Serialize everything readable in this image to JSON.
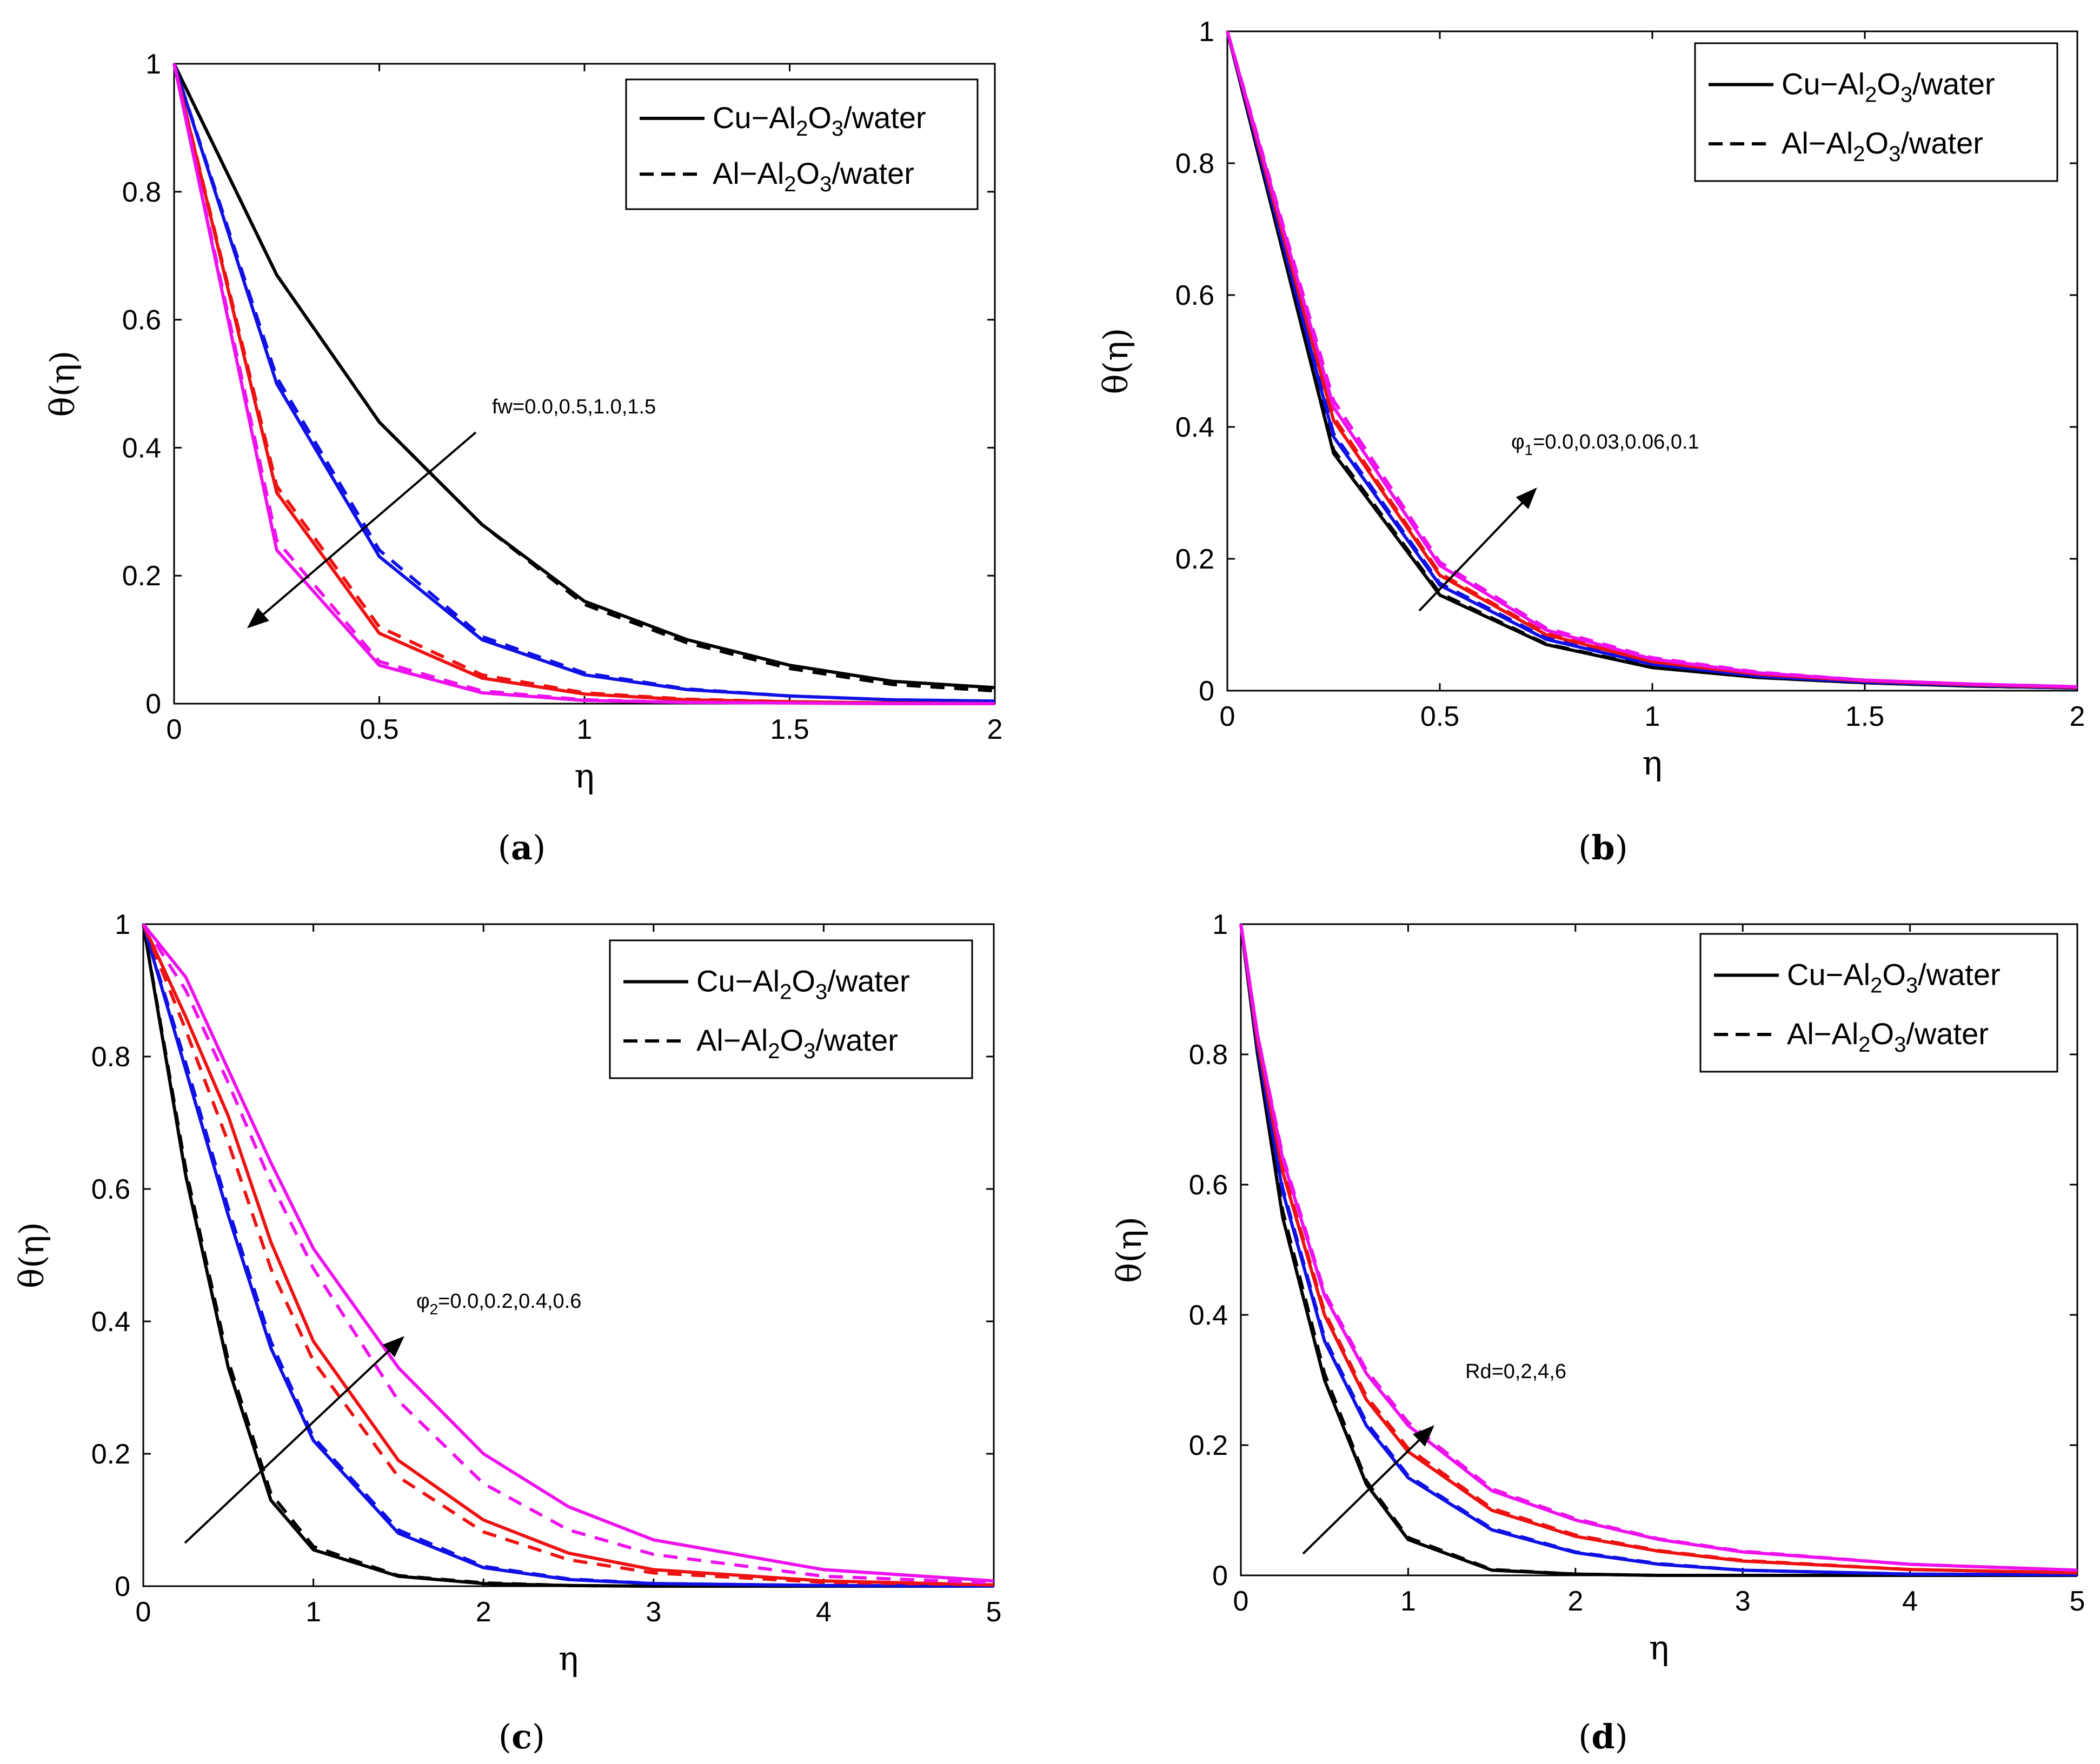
{
  "colors": {
    "black": "#000000",
    "blue": "#1010e6",
    "red": "#ee1111",
    "magenta": "#ee11ee"
  },
  "legend": {
    "solid": [
      "Cu−Al",
      "2",
      "O",
      "3",
      "/water"
    ],
    "dashed": [
      "Al−Al",
      "2",
      "O",
      "3",
      "/water"
    ]
  },
  "chart_data": [
    {
      "panel": "a",
      "caption": "a",
      "type": "line",
      "xlabel": "η",
      "ylabel": "θ(η)",
      "xlim": [
        0,
        2
      ],
      "ylim": [
        0,
        1
      ],
      "xticks": [
        "0",
        "0.5",
        "1",
        "1.5",
        "2"
      ],
      "yticks": [
        "0",
        "0.2",
        "0.4",
        "0.6",
        "0.8",
        "1"
      ],
      "annotation": {
        "text": "fw=0.0,0.5,1.0,1.5",
        "direction": "decreasing"
      },
      "x": [
        0,
        0.25,
        0.5,
        0.75,
        1,
        1.25,
        1.5,
        1.75,
        2
      ],
      "series": [
        {
          "name": "Cu-Al2O3/water fw=0.0",
          "color": "black",
          "style": "solid",
          "values": [
            1,
            0.67,
            0.44,
            0.28,
            0.16,
            0.1,
            0.06,
            0.035,
            0.025
          ]
        },
        {
          "name": "Al-Al2O3/water fw=0.0",
          "color": "black",
          "style": "dashed",
          "values": [
            1,
            0.67,
            0.44,
            0.28,
            0.155,
            0.095,
            0.055,
            0.03,
            0.02
          ]
        },
        {
          "name": "Cu-Al2O3/water fw=0.5",
          "color": "blue",
          "style": "solid",
          "values": [
            1,
            0.5,
            0.23,
            0.1,
            0.045,
            0.022,
            0.012,
            0.006,
            0.004
          ]
        },
        {
          "name": "Al-Al2O3/water fw=0.5",
          "color": "blue",
          "style": "dashed",
          "values": [
            1,
            0.51,
            0.24,
            0.105,
            0.048,
            0.023,
            0.012,
            0.006,
            0.004
          ]
        },
        {
          "name": "Cu-Al2O3/water fw=1.0",
          "color": "red",
          "style": "solid",
          "values": [
            1,
            0.33,
            0.11,
            0.04,
            0.015,
            0.006,
            0.003,
            0.001,
            0
          ]
        },
        {
          "name": "Al-Al2O3/water fw=1.0",
          "color": "red",
          "style": "dashed",
          "values": [
            1,
            0.34,
            0.12,
            0.045,
            0.017,
            0.007,
            0.003,
            0.001,
            0
          ]
        },
        {
          "name": "Cu-Al2O3/water fw=1.5",
          "color": "magenta",
          "style": "solid",
          "values": [
            1,
            0.24,
            0.06,
            0.017,
            0.005,
            0.002,
            0.001,
            0,
            0
          ]
        },
        {
          "name": "Al-Al2O3/water fw=1.5",
          "color": "magenta",
          "style": "dashed",
          "values": [
            1,
            0.255,
            0.066,
            0.02,
            0.006,
            0.002,
            0.001,
            0,
            0
          ]
        }
      ]
    },
    {
      "panel": "b",
      "caption": "b",
      "type": "line",
      "xlabel": "η",
      "ylabel": "θ(η)",
      "xlim": [
        0,
        2
      ],
      "ylim": [
        0,
        1
      ],
      "xticks": [
        "0",
        "0.5",
        "1",
        "1.5",
        "2"
      ],
      "yticks": [
        "0",
        "0.2",
        "0.4",
        "0.6",
        "0.8",
        "1"
      ],
      "annotation": {
        "text": "φ",
        "sub": "1",
        "rest": "=0.0,0.03,0.06,0.1",
        "direction": "increasing"
      },
      "x": [
        0,
        0.25,
        0.5,
        0.75,
        1,
        1.25,
        1.5,
        1.75,
        2
      ],
      "series": [
        {
          "name": "Cu-Al2O3/water φ1=0.0",
          "color": "black",
          "style": "solid",
          "values": [
            1,
            0.36,
            0.145,
            0.07,
            0.035,
            0.02,
            0.012,
            0.007,
            0.004
          ]
        },
        {
          "name": "Al-Al2O3/water φ1=0.0",
          "color": "black",
          "style": "dashed",
          "values": [
            1,
            0.365,
            0.148,
            0.071,
            0.036,
            0.02,
            0.012,
            0.007,
            0.004
          ]
        },
        {
          "name": "Cu-Al2O3/water φ1=0.03",
          "color": "blue",
          "style": "solid",
          "values": [
            1,
            0.385,
            0.16,
            0.078,
            0.04,
            0.022,
            0.013,
            0.008,
            0.004
          ]
        },
        {
          "name": "Al-Al2O3/water φ1=0.03",
          "color": "blue",
          "style": "dashed",
          "values": [
            1,
            0.39,
            0.163,
            0.08,
            0.041,
            0.023,
            0.013,
            0.008,
            0.004
          ]
        },
        {
          "name": "Cu-Al2O3/water φ1=0.06",
          "color": "red",
          "style": "solid",
          "values": [
            1,
            0.41,
            0.175,
            0.085,
            0.044,
            0.025,
            0.015,
            0.009,
            0.005
          ]
        },
        {
          "name": "Al-Al2O3/water φ1=0.06",
          "color": "red",
          "style": "dashed",
          "values": [
            1,
            0.415,
            0.178,
            0.087,
            0.045,
            0.025,
            0.015,
            0.009,
            0.005
          ]
        },
        {
          "name": "Cu-Al2O3/water φ1=0.1",
          "color": "magenta",
          "style": "solid",
          "values": [
            1,
            0.43,
            0.19,
            0.092,
            0.048,
            0.027,
            0.016,
            0.01,
            0.006
          ]
        },
        {
          "name": "Al-Al2O3/water φ1=0.1",
          "color": "magenta",
          "style": "dashed",
          "values": [
            1,
            0.44,
            0.195,
            0.095,
            0.05,
            0.028,
            0.016,
            0.01,
            0.006
          ]
        }
      ]
    },
    {
      "panel": "c",
      "caption": "c",
      "type": "line",
      "xlabel": "η",
      "ylabel": "θ(η)",
      "xlim": [
        0,
        5
      ],
      "ylim": [
        0,
        1
      ],
      "xticks": [
        "0",
        "1",
        "2",
        "3",
        "4",
        "5"
      ],
      "yticks": [
        "0",
        "0.2",
        "0.4",
        "0.6",
        "0.8",
        "1"
      ],
      "annotation": {
        "text": "φ",
        "sub": "2",
        "rest": "=0.0,0.2,0.4,0.6",
        "direction": "increasing"
      },
      "x": [
        0,
        0.25,
        0.5,
        0.75,
        1,
        1.5,
        2,
        2.5,
        3,
        4,
        5
      ],
      "series": [
        {
          "name": "Cu-Al2O3/water φ2=0.0",
          "color": "black",
          "style": "solid",
          "values": [
            1,
            0.62,
            0.33,
            0.13,
            0.055,
            0.015,
            0.004,
            0.001,
            0,
            0,
            0
          ]
        },
        {
          "name": "Al-Al2O3/water φ2=0.0",
          "color": "black",
          "style": "dashed",
          "values": [
            1,
            0.63,
            0.34,
            0.14,
            0.06,
            0.016,
            0.005,
            0.001,
            0,
            0,
            0
          ]
        },
        {
          "name": "Cu-Al2O3/water φ2=0.2",
          "color": "blue",
          "style": "solid",
          "values": [
            1,
            0.78,
            0.56,
            0.36,
            0.22,
            0.08,
            0.028,
            0.01,
            0.004,
            0.001,
            0
          ]
        },
        {
          "name": "Al-Al2O3/water φ2=0.2",
          "color": "blue",
          "style": "dashed",
          "values": [
            1,
            0.79,
            0.57,
            0.37,
            0.225,
            0.085,
            0.03,
            0.011,
            0.004,
            0.001,
            0
          ]
        },
        {
          "name": "Cu-Al2O3/water φ2=0.4",
          "color": "red",
          "style": "solid",
          "values": [
            1,
            0.86,
            0.71,
            0.52,
            0.37,
            0.19,
            0.1,
            0.05,
            0.025,
            0.008,
            0.002
          ]
        },
        {
          "name": "Al-Al2O3/water φ2=0.4",
          "color": "red",
          "style": "dashed",
          "values": [
            1,
            0.84,
            0.67,
            0.48,
            0.34,
            0.165,
            0.082,
            0.04,
            0.02,
            0.006,
            0.002
          ]
        },
        {
          "name": "Cu-Al2O3/water φ2=0.6",
          "color": "magenta",
          "style": "solid",
          "values": [
            1,
            0.92,
            0.78,
            0.64,
            0.51,
            0.33,
            0.2,
            0.12,
            0.07,
            0.025,
            0.008
          ]
        },
        {
          "name": "Al-Al2O3/water φ2=0.6",
          "color": "magenta",
          "style": "dashed",
          "values": [
            1,
            0.9,
            0.76,
            0.61,
            0.48,
            0.28,
            0.155,
            0.085,
            0.048,
            0.015,
            0.005
          ]
        }
      ]
    },
    {
      "panel": "d",
      "caption": "d",
      "type": "line",
      "xlabel": "η",
      "ylabel": "θ(η)",
      "xlim": [
        0,
        5
      ],
      "ylim": [
        0,
        1
      ],
      "xticks": [
        "0",
        "1",
        "2",
        "3",
        "4",
        "5"
      ],
      "yticks": [
        "0",
        "0.2",
        "0.4",
        "0.6",
        "0.8",
        "1"
      ],
      "annotation": {
        "text": "Rd=0,2,4,6",
        "direction": "increasing"
      },
      "x": [
        0,
        0.1,
        0.25,
        0.5,
        0.75,
        1,
        1.5,
        2,
        2.5,
        3,
        4,
        5
      ],
      "series": [
        {
          "name": "Cu-Al2O3/water Rd=0",
          "color": "black",
          "style": "solid",
          "values": [
            1,
            0.8,
            0.55,
            0.3,
            0.14,
            0.055,
            0.008,
            0.002,
            0,
            0,
            0,
            0
          ]
        },
        {
          "name": "Al-Al2O3/water Rd=0",
          "color": "black",
          "style": "dashed",
          "values": [
            1,
            0.8,
            0.56,
            0.31,
            0.145,
            0.058,
            0.009,
            0.002,
            0,
            0,
            0,
            0
          ]
        },
        {
          "name": "Cu-Al2O3/water Rd=2",
          "color": "blue",
          "style": "solid",
          "values": [
            1,
            0.81,
            0.59,
            0.36,
            0.23,
            0.15,
            0.07,
            0.035,
            0.017,
            0.008,
            0.002,
            0.001
          ]
        },
        {
          "name": "Al-Al2O3/water Rd=2",
          "color": "blue",
          "style": "dashed",
          "values": [
            1,
            0.81,
            0.595,
            0.365,
            0.235,
            0.153,
            0.072,
            0.036,
            0.018,
            0.008,
            0.002,
            0.001
          ]
        },
        {
          "name": "Cu-Al2O3/water Rd=4",
          "color": "red",
          "style": "solid",
          "values": [
            1,
            0.82,
            0.62,
            0.4,
            0.27,
            0.19,
            0.1,
            0.06,
            0.037,
            0.022,
            0.009,
            0.004
          ]
        },
        {
          "name": "Al-Al2O3/water Rd=4",
          "color": "red",
          "style": "dashed",
          "values": [
            1,
            0.82,
            0.625,
            0.405,
            0.275,
            0.195,
            0.103,
            0.062,
            0.038,
            0.023,
            0.009,
            0.004
          ]
        },
        {
          "name": "Cu-Al2O3/water Rd=6",
          "color": "magenta",
          "style": "solid",
          "values": [
            1,
            0.83,
            0.64,
            0.43,
            0.31,
            0.23,
            0.13,
            0.085,
            0.055,
            0.036,
            0.017,
            0.008
          ]
        },
        {
          "name": "Al-Al2O3/water Rd=6",
          "color": "magenta",
          "style": "dashed",
          "values": [
            1,
            0.83,
            0.645,
            0.435,
            0.315,
            0.235,
            0.133,
            0.087,
            0.056,
            0.037,
            0.017,
            0.008
          ]
        }
      ]
    }
  ]
}
